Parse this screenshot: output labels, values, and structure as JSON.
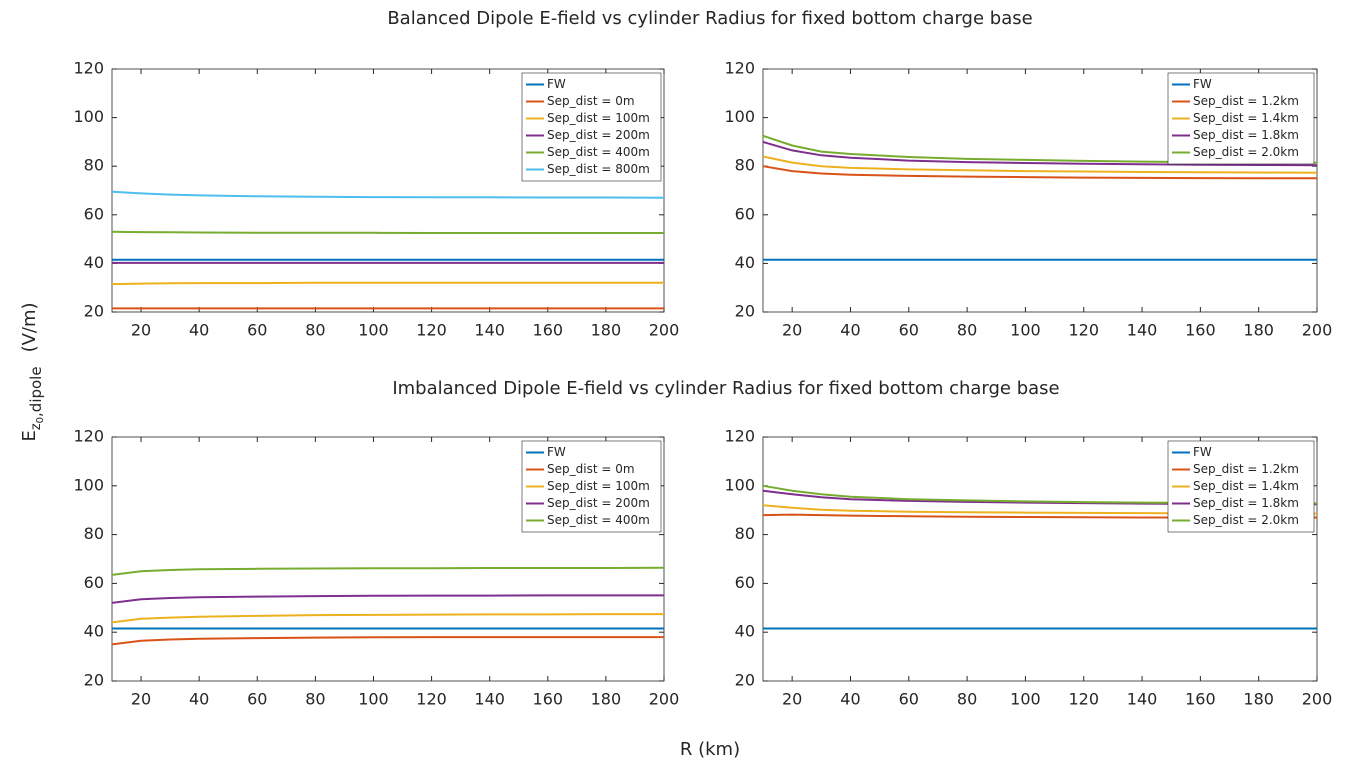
{
  "figure": {
    "titles": [
      "Balanced Dipole E-field vs cylinder Radius for fixed bottom charge base",
      "Imbalanced Dipole E-field vs cylinder Radius for fixed bottom charge base"
    ],
    "ylabel": {
      "base": "E",
      "sub": "z",
      "subsub": "0",
      "tail": ",dipole",
      "unit": "(V/m)"
    },
    "xlabel": "R (km)"
  },
  "chart_data": [
    {
      "type": "line",
      "legend": "upper right",
      "x": [
        10,
        20,
        30,
        40,
        60,
        80,
        100,
        120,
        140,
        160,
        180,
        200
      ],
      "xlim": [
        10,
        200
      ],
      "ylim": [
        20,
        120
      ],
      "xticks": [
        20,
        40,
        60,
        80,
        100,
        120,
        140,
        160,
        180,
        200
      ],
      "yticks": [
        20,
        40,
        60,
        80,
        100,
        120
      ],
      "series": [
        {
          "name": "FW",
          "color": "#0072BD",
          "values": [
            41.5,
            41.5,
            41.5,
            41.5,
            41.5,
            41.5,
            41.5,
            41.5,
            41.5,
            41.5,
            41.5,
            41.5
          ]
        },
        {
          "name": "Sep_dist = 0m",
          "color": "#D95319",
          "values": [
            21.5,
            21.5,
            21.5,
            21.5,
            21.5,
            21.5,
            21.5,
            21.5,
            21.5,
            21.5,
            21.5,
            21.5
          ]
        },
        {
          "name": "Sep_dist = 100m",
          "color": "#EDB120",
          "values": [
            31.5,
            31.7,
            31.8,
            31.9,
            31.9,
            32,
            32,
            32,
            32,
            32,
            32,
            32
          ]
        },
        {
          "name": "Sep_dist = 200m",
          "color": "#7E2F8E",
          "values": [
            40.2,
            40.2,
            40.2,
            40.2,
            40.2,
            40.2,
            40.2,
            40.2,
            40.2,
            40.2,
            40.2,
            40.2
          ]
        },
        {
          "name": "Sep_dist = 400m",
          "color": "#77AC30",
          "values": [
            53,
            52.9,
            52.8,
            52.7,
            52.6,
            52.6,
            52.6,
            52.5,
            52.5,
            52.5,
            52.5,
            52.5
          ]
        },
        {
          "name": "Sep_dist = 800m",
          "color": "#4DBEEE",
          "values": [
            69.5,
            68.8,
            68.3,
            68,
            67.6,
            67.4,
            67.3,
            67.2,
            67.2,
            67.1,
            67.1,
            67
          ]
        }
      ]
    },
    {
      "type": "line",
      "legend": "upper right",
      "x": [
        10,
        20,
        30,
        40,
        60,
        80,
        100,
        120,
        140,
        160,
        180,
        200
      ],
      "xlim": [
        10,
        200
      ],
      "ylim": [
        20,
        120
      ],
      "xticks": [
        20,
        40,
        60,
        80,
        100,
        120,
        140,
        160,
        180,
        200
      ],
      "yticks": [
        20,
        40,
        60,
        80,
        100,
        120
      ],
      "series": [
        {
          "name": "FW",
          "color": "#0072BD",
          "values": [
            41.5,
            41.5,
            41.5,
            41.5,
            41.5,
            41.5,
            41.5,
            41.5,
            41.5,
            41.5,
            41.5,
            41.5
          ]
        },
        {
          "name": "Sep_dist = 1.2km",
          "color": "#D95319",
          "values": [
            80,
            78,
            77,
            76.5,
            76,
            75.7,
            75.5,
            75.3,
            75.2,
            75.1,
            75,
            75
          ]
        },
        {
          "name": "Sep_dist = 1.4km",
          "color": "#EDB120",
          "values": [
            84,
            81.5,
            80,
            79.3,
            78.7,
            78.3,
            78,
            77.8,
            77.6,
            77.5,
            77.4,
            77.3
          ]
        },
        {
          "name": "Sep_dist = 1.8km",
          "color": "#7E2F8E",
          "values": [
            90,
            86.5,
            84.5,
            83.5,
            82.3,
            81.7,
            81.3,
            81,
            80.8,
            80.6,
            80.5,
            80.4
          ]
        },
        {
          "name": "Sep_dist = 2.0km",
          "color": "#77AC30",
          "values": [
            92.5,
            88.5,
            86,
            85,
            83.8,
            83,
            82.6,
            82.2,
            81.9,
            81.7,
            81.5,
            81.4
          ]
        }
      ]
    },
    {
      "type": "line",
      "legend": "upper right",
      "x": [
        10,
        20,
        30,
        40,
        60,
        80,
        100,
        120,
        140,
        160,
        180,
        200
      ],
      "xlim": [
        10,
        200
      ],
      "ylim": [
        20,
        120
      ],
      "xticks": [
        20,
        40,
        60,
        80,
        100,
        120,
        140,
        160,
        180,
        200
      ],
      "yticks": [
        20,
        40,
        60,
        80,
        100,
        120
      ],
      "series": [
        {
          "name": "FW",
          "color": "#0072BD",
          "values": [
            41.5,
            41.5,
            41.5,
            41.5,
            41.5,
            41.5,
            41.5,
            41.5,
            41.5,
            41.5,
            41.5,
            41.5
          ]
        },
        {
          "name": "Sep_dist = 0m",
          "color": "#D95319",
          "values": [
            35,
            36.5,
            37,
            37.3,
            37.6,
            37.8,
            37.9,
            38,
            38,
            38,
            38,
            38
          ]
        },
        {
          "name": "Sep_dist = 100m",
          "color": "#EDB120",
          "values": [
            44,
            45.5,
            46,
            46.3,
            46.7,
            47,
            47.1,
            47.2,
            47.3,
            47.3,
            47.4,
            47.4
          ]
        },
        {
          "name": "Sep_dist = 200m",
          "color": "#7E2F8E",
          "values": [
            52,
            53.5,
            54,
            54.3,
            54.6,
            54.8,
            54.9,
            55,
            55,
            55.1,
            55.1,
            55.1
          ]
        },
        {
          "name": "Sep_dist = 400m",
          "color": "#77AC30",
          "values": [
            63.5,
            65,
            65.5,
            65.8,
            66,
            66.1,
            66.2,
            66.2,
            66.3,
            66.3,
            66.3,
            66.4
          ]
        }
      ]
    },
    {
      "type": "line",
      "legend": "upper right",
      "x": [
        10,
        20,
        30,
        40,
        60,
        80,
        100,
        120,
        140,
        160,
        180,
        200
      ],
      "xlim": [
        10,
        200
      ],
      "ylim": [
        20,
        120
      ],
      "xticks": [
        20,
        40,
        60,
        80,
        100,
        120,
        140,
        160,
        180,
        200
      ],
      "yticks": [
        20,
        40,
        60,
        80,
        100,
        120
      ],
      "series": [
        {
          "name": "FW",
          "color": "#0072BD",
          "values": [
            41.5,
            41.5,
            41.5,
            41.5,
            41.5,
            41.5,
            41.5,
            41.5,
            41.5,
            41.5,
            41.5,
            41.5
          ]
        },
        {
          "name": "Sep_dist = 1.2km",
          "color": "#D95319",
          "values": [
            88,
            88.2,
            88,
            87.8,
            87.5,
            87.3,
            87.2,
            87.1,
            87,
            87,
            87,
            87
          ]
        },
        {
          "name": "Sep_dist = 1.4km",
          "color": "#EDB120",
          "values": [
            92,
            91,
            90.2,
            89.8,
            89.4,
            89.2,
            89,
            88.9,
            88.8,
            88.7,
            88.7,
            88.6
          ]
        },
        {
          "name": "Sep_dist = 1.8km",
          "color": "#7E2F8E",
          "values": [
            98,
            96.5,
            95.3,
            94.5,
            93.8,
            93.4,
            93.1,
            92.9,
            92.7,
            92.6,
            92.5,
            92.4
          ]
        },
        {
          "name": "Sep_dist = 2.0km",
          "color": "#77AC30",
          "values": [
            100,
            98,
            96.5,
            95.5,
            94.5,
            94,
            93.6,
            93.3,
            93.1,
            93,
            92.9,
            92.8
          ]
        }
      ]
    }
  ]
}
